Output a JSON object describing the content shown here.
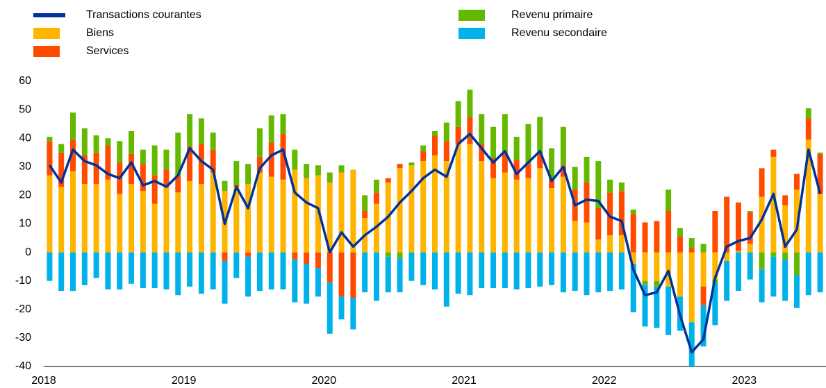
{
  "chart_data": {
    "type": "bar",
    "stacked": true,
    "categories": [
      "2018",
      null,
      null,
      null,
      null,
      null,
      null,
      null,
      null,
      null,
      null,
      null,
      "2019",
      null,
      null,
      null,
      null,
      null,
      null,
      null,
      null,
      null,
      null,
      null,
      "2020",
      null,
      null,
      null,
      null,
      null,
      null,
      null,
      null,
      null,
      null,
      null,
      "2021",
      null,
      null,
      null,
      null,
      null,
      null,
      null,
      null,
      null,
      null,
      null,
      "2022",
      null,
      null,
      null,
      null,
      null,
      null,
      null,
      null,
      null,
      null,
      null,
      "2023",
      null,
      null,
      null,
      null,
      null,
      null
    ],
    "series": [
      {
        "name": "Transactions courantes",
        "type": "line",
        "color": "#003299",
        "values": [
          30.5,
          24.5,
          36,
          32,
          30.5,
          27.5,
          26,
          31.5,
          23.5,
          25,
          23,
          27,
          36.5,
          32,
          29,
          10,
          23,
          15.5,
          29.5,
          34,
          36,
          21,
          17.5,
          15.5,
          0,
          7,
          2,
          6,
          9,
          12.5,
          17.5,
          21.5,
          26,
          29,
          26.5,
          38,
          41.5,
          36.5,
          31.5,
          35.5,
          27.5,
          31.5,
          35.5,
          25,
          30,
          16.5,
          18.5,
          18,
          12.5,
          11,
          -6,
          -15,
          -14,
          -6.5,
          -22,
          -35,
          -30.5,
          -9,
          2,
          4,
          5,
          11.5,
          20.5,
          2,
          8,
          36,
          20.5
        ]
      },
      {
        "name": "Biens",
        "color": "#ffb400",
        "values": [
          27,
          23,
          28.5,
          24,
          24,
          25.5,
          20.5,
          24,
          21.5,
          17,
          23,
          21,
          25,
          24,
          28,
          21.5,
          23,
          24,
          28,
          26.5,
          25.5,
          29,
          26,
          27,
          24.5,
          28,
          29,
          12,
          17,
          24.5,
          29.5,
          30.5,
          32,
          34,
          32,
          38,
          38,
          32,
          26,
          28,
          25.5,
          26,
          29.5,
          22.5,
          26.5,
          11,
          10.5,
          4.5,
          6,
          6,
          -4,
          -10,
          -10,
          -12,
          -15.5,
          -24.5,
          -12,
          -9.5,
          -3,
          0.5,
          3,
          19.5,
          33.5,
          16.5,
          22,
          39.5,
          20.5
        ]
      },
      {
        "name": "Services",
        "color": "#ff4b00",
        "values": [
          12,
          12,
          11,
          10,
          11,
          12,
          11,
          10.5,
          9.5,
          10,
          6,
          6,
          12,
          14,
          8,
          -3,
          0.5,
          -1.5,
          5.5,
          12,
          16,
          -2.5,
          -4,
          -5.5,
          -10.5,
          -15.5,
          -16,
          2.5,
          4,
          1.5,
          1.5,
          0,
          3.5,
          7,
          7,
          6,
          9.5,
          6,
          7,
          7,
          7,
          5,
          5,
          3,
          4,
          11,
          14,
          11,
          15,
          15.5,
          13.5,
          10.5,
          11,
          14.5,
          5.5,
          1.5,
          -6.5,
          14.5,
          19.5,
          17,
          11,
          10,
          2.5,
          3.5,
          5.5,
          7.5,
          14
        ]
      },
      {
        "name": "Revenu primaire",
        "color": "#65b800",
        "values": [
          1.5,
          3,
          9.5,
          9.5,
          6,
          2.5,
          7.5,
          8,
          5,
          10.5,
          7,
          15,
          11.5,
          9,
          6,
          3.5,
          8.5,
          7,
          10,
          9.5,
          7,
          7,
          5,
          3.5,
          3.5,
          2.5,
          0,
          5.5,
          4.5,
          -1.5,
          -2,
          1,
          2,
          1.5,
          6.5,
          9,
          9.5,
          10.5,
          11,
          13.5,
          8,
          14,
          13,
          11,
          13.5,
          8,
          9,
          16.5,
          4.5,
          3,
          1.5,
          -1.5,
          -2,
          7.5,
          3,
          3.5,
          3,
          -1,
          0,
          0,
          0.5,
          -6,
          -1.5,
          -2.5,
          -8,
          3.5,
          0.5
        ]
      },
      {
        "name": "Revenu secondaire",
        "color": "#00b1ea",
        "values": [
          -10,
          -13.5,
          -13.5,
          -11.5,
          -9,
          -13,
          -13,
          -11,
          -12.5,
          -12.5,
          -13,
          -15,
          -12,
          -14.5,
          -13,
          -15,
          -9,
          -14,
          -13.5,
          -13,
          -13,
          -15,
          -14,
          -10,
          -18,
          -8,
          -11,
          -14,
          -17,
          -12.5,
          -12,
          -10,
          -11.5,
          -13,
          -19,
          -14.5,
          -15,
          -12.5,
          -12.5,
          -12.5,
          -13,
          -12.5,
          -12,
          -11.5,
          -14,
          -13.5,
          -15,
          -14,
          -13.5,
          -13,
          -17,
          -14.5,
          -14.5,
          -17,
          -12,
          -15.5,
          -14.5,
          -15,
          -14,
          -13.5,
          -9.5,
          -11.5,
          -14,
          -14.5,
          -11.5,
          -15,
          -14
        ]
      }
    ],
    "ylim": [
      -40,
      60
    ],
    "yticks": [
      -40,
      -30,
      -20,
      -10,
      0,
      10,
      20,
      30,
      40,
      50,
      60
    ],
    "grid": false
  }
}
